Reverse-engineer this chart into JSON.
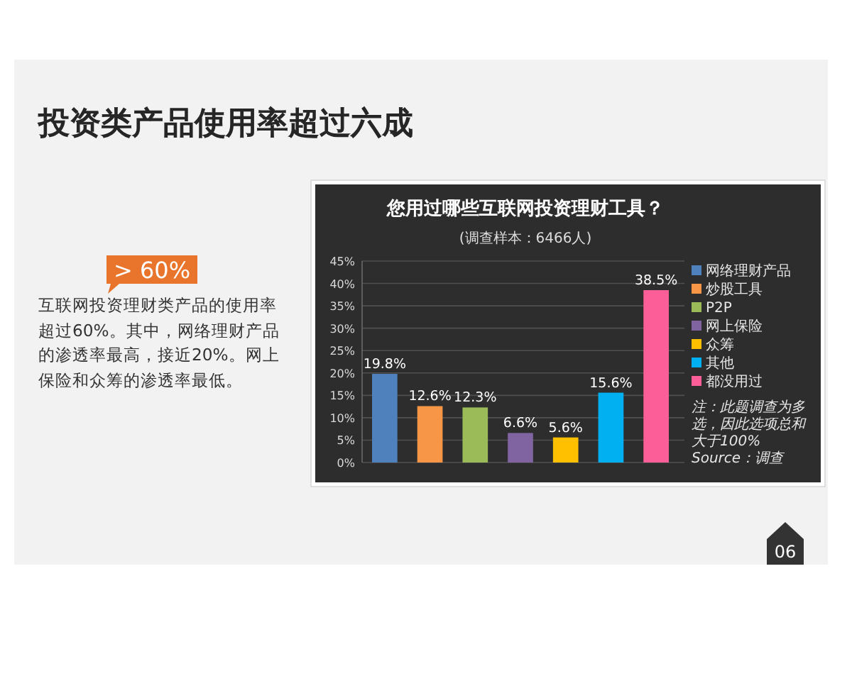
{
  "chart_data": {
    "type": "bar",
    "title": "您用过哪些互联网投资理财工具？",
    "subtitle": "(调查样本：6466人)",
    "categories": [
      null
    ],
    "series": [
      {
        "name": "网络理财产品",
        "color": "#4f81bd",
        "values": [
          19.8
        ],
        "value_labels": [
          "19.8%"
        ]
      },
      {
        "name": "炒股工具",
        "color": "#f79646",
        "values": [
          12.6
        ],
        "value_labels": [
          "12.6%"
        ]
      },
      {
        "name": "P2P",
        "color": "#9bbb59",
        "values": [
          12.3
        ],
        "value_labels": [
          "12.3%"
        ]
      },
      {
        "name": "网上保险",
        "color": "#8064a2",
        "values": [
          6.6
        ],
        "value_labels": [
          "6.6%"
        ]
      },
      {
        "name": "众筹",
        "color": "#ffc000",
        "values": [
          5.6
        ],
        "value_labels": [
          "5.6%"
        ]
      },
      {
        "name": "其他",
        "color": "#00b0f0",
        "values": [
          15.6
        ],
        "value_labels": [
          "15.6%"
        ]
      },
      {
        "name": "都没用过",
        "color": "#fc5f98",
        "values": [
          38.5
        ],
        "value_labels": [
          "38.5%"
        ]
      }
    ],
    "ylim": [
      0,
      45
    ],
    "yticks": [
      {
        "value": 0,
        "label": "0%"
      },
      {
        "value": 5,
        "label": "5%"
      },
      {
        "value": 10,
        "label": "10%"
      },
      {
        "value": 15,
        "label": "15%"
      },
      {
        "value": 20,
        "label": "20%"
      },
      {
        "value": 25,
        "label": "25%"
      },
      {
        "value": 30,
        "label": "30%"
      },
      {
        "value": 35,
        "label": "35%"
      },
      {
        "value": 40,
        "label": "40%"
      },
      {
        "value": 45,
        "label": "45%"
      }
    ],
    "grid": "y",
    "legend": "right",
    "annotations": [
      "投资类产品使用率超过六成",
      "> 60%",
      "互联网投资理财类产品的使用率超过60%。其中，网络理财产品的渗透率最高，接近20%。网上保险和众筹的渗透率最低。",
      "注：此题调查为多选，因此选项总和大于100%",
      "Source：调查",
      "06"
    ]
  }
}
